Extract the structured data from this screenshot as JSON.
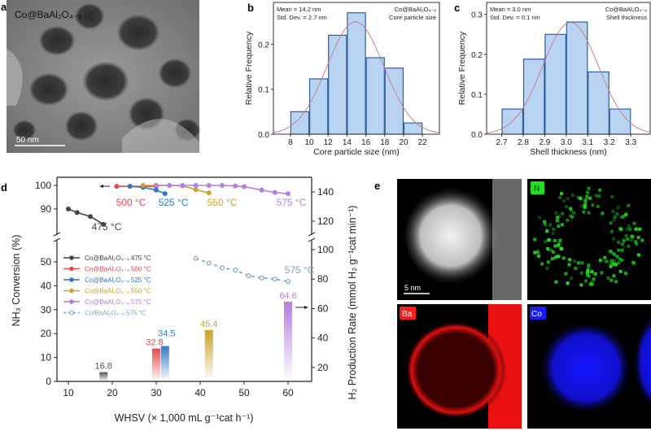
{
  "panel_a": {
    "label": "a",
    "sample": "Co@BaAl₂O₄₋ₓ",
    "scale_bar": "50 nm"
  },
  "chart_data": [
    {
      "id": "b",
      "type": "bar",
      "panel_label": "b",
      "title": "Co@BaAl₂O₄₋ₓ",
      "subtitle": "Core particle size",
      "stats": [
        "Mean = 14.2 nm",
        "Std. Dev. = 2.7 nm"
      ],
      "xlabel": "Core particle size (nm)",
      "ylabel": "Relative Frequency",
      "bin_centers": [
        9,
        11,
        13,
        15,
        17,
        19,
        21
      ],
      "bin_width": 2,
      "values": [
        0.05,
        0.123,
        0.22,
        0.27,
        0.17,
        0.147,
        0.025
      ],
      "fit": {
        "type": "gaussian",
        "mean": 14.9,
        "peak": 0.25,
        "sd": 3.0
      },
      "xlim": [
        6.2,
        23.8
      ],
      "ylim": [
        0,
        0.293
      ],
      "x_ticks": [
        "8",
        "10",
        "12",
        "14",
        "16",
        "18",
        "20",
        "22"
      ],
      "x_tick_values": [
        8,
        10,
        12,
        14,
        16,
        18,
        20,
        22
      ],
      "y_ticks": [
        "0.0",
        "0.1",
        "0.2"
      ],
      "y_tick_values": [
        0,
        0.1,
        0.2
      ]
    },
    {
      "id": "c",
      "type": "bar",
      "panel_label": "c",
      "title": "Co@BaAl₂O₄₋ₓ",
      "subtitle": "Shell thickness",
      "stats": [
        "Mean = 3.0 nm",
        "Std. Dev. = 0.1 nm"
      ],
      "xlabel": "Shell thickness (nm)",
      "ylabel": "Relative Frequency",
      "bin_centers": [
        2.75,
        2.85,
        2.95,
        3.05,
        3.15,
        3.25
      ],
      "bin_width": 0.1,
      "values": [
        0.063,
        0.188,
        0.25,
        0.281,
        0.156,
        0.063
      ],
      "fit": {
        "type": "gaussian",
        "mean": 3.02,
        "peak": 0.28,
        "sd": 0.13
      },
      "xlim": [
        2.63,
        3.39
      ],
      "ylim": [
        0,
        0.33
      ],
      "x_ticks": [
        "2.7",
        "2.8",
        "2.9",
        "3.0",
        "3.1",
        "3.2",
        "3.3"
      ],
      "x_tick_values": [
        2.7,
        2.8,
        2.9,
        3.0,
        3.1,
        3.2,
        3.3
      ],
      "y_ticks": [
        "0.0",
        "0.1",
        "0.2",
        "0.3"
      ],
      "y_tick_values": [
        0,
        0.1,
        0.2,
        0.3
      ]
    },
    {
      "id": "d",
      "type": "line",
      "panel_label": "d",
      "xlabel": "WHSV (× 1,000 mL g⁻¹cat h⁻¹)",
      "ylabel_left": "NH₃ Conversion (%)",
      "ylabel_right": "H₂ Production Rate (mmol H₂ g⁻¹cat min⁻¹)",
      "xlim": [
        8,
        65
      ],
      "x_ticks": [
        "10",
        "20",
        "30",
        "40",
        "50",
        "60"
      ],
      "x_tick_values": [
        10,
        20,
        30,
        40,
        50,
        60
      ],
      "y_left_upper_ticks": [
        "90",
        "100"
      ],
      "y_left_upper_values": [
        90,
        100
      ],
      "y_left_lower_ticks": [
        "0",
        "10",
        "20",
        "30",
        "40",
        "50"
      ],
      "y_left_lower_values": [
        0,
        10,
        20,
        30,
        40,
        50
      ],
      "y_right_upper_ticks": [
        "120",
        "140"
      ],
      "y_right_upper_values": [
        120,
        140
      ],
      "y_right_lower_ticks": [
        "20",
        "40",
        "60",
        "80",
        "100"
      ],
      "y_right_lower_values": [
        20,
        40,
        60,
        80,
        100
      ],
      "series": [
        {
          "name": "Co@BaAl₂O₄₋ₓ 475 °C",
          "label": "475 °C",
          "color": "#454545",
          "axis": "left",
          "style": "solid",
          "x": [
            10,
            12,
            15,
            18
          ],
          "y": [
            90,
            88.5,
            86.8,
            83.5
          ]
        },
        {
          "name": "Co@BaAl₂O₄₋ₓ 500 °C",
          "label": "500 °C",
          "color": "#e5484d",
          "axis": "left",
          "style": "solid",
          "x": [
            21,
            24,
            27,
            30
          ],
          "y": [
            99.6,
            99.6,
            99.6,
            99.5
          ]
        },
        {
          "name": "Co@BaAl₂O₄₋ₓ 525 °C",
          "label": "525 °C",
          "color": "#2f79c6",
          "axis": "left",
          "style": "solid",
          "x": [
            24,
            27,
            30,
            32
          ],
          "y": [
            99.6,
            99.2,
            98,
            96.5
          ]
        },
        {
          "name": "Co@BaAl₂O₄₋ₓ 550 °C",
          "label": "550 °C",
          "color": "#c9a32a",
          "axis": "left",
          "style": "solid",
          "x": [
            27,
            30,
            33,
            36,
            39,
            42
          ],
          "y": [
            100,
            100,
            100,
            99.8,
            98.2,
            96.8
          ]
        },
        {
          "name": "Co@BaAl₂O₄₋ₓ 575 °C",
          "label": "575 °C",
          "color": "#b47fe0",
          "axis": "left",
          "style": "solid",
          "x": [
            30,
            33,
            36,
            39,
            42,
            45,
            48,
            50,
            54,
            57,
            60
          ],
          "y": [
            100,
            100,
            100,
            100,
            100,
            100,
            99.8,
            99.5,
            98,
            97,
            96.5
          ]
        },
        {
          "name": "Co/BaAl₂O₄₋ₓ 575 °C",
          "label": "575 °C",
          "color": "#78a6c0",
          "axis": "left",
          "style": "dashed-hollow",
          "x": [
            39,
            42,
            45,
            48,
            51,
            54,
            57,
            60
          ],
          "y": [
            51.5,
            49.5,
            47.5,
            46.5,
            44.2,
            43.3,
            42.8,
            41.8
          ]
        }
      ],
      "bars": {
        "axis": "right",
        "x": [
          18,
          30,
          32,
          42,
          60
        ],
        "values": [
          16.8,
          32.8,
          34.5,
          45.4,
          64.6
        ],
        "labels": [
          "16.8",
          "32.8",
          "34.5",
          "45.4",
          "64.6"
        ],
        "colors": [
          "#555555",
          "#e5484d",
          "#2f79c6",
          "#c9a32a",
          "#b47fe0"
        ]
      }
    }
  ],
  "panel_e": {
    "label": "e",
    "scale_bar": "5 nm",
    "maps": [
      "N",
      "Ba",
      "Co"
    ],
    "map_colors": {
      "N": "#22dd22",
      "Ba": "#ff1a1a",
      "Co": "#1a1aff"
    }
  }
}
